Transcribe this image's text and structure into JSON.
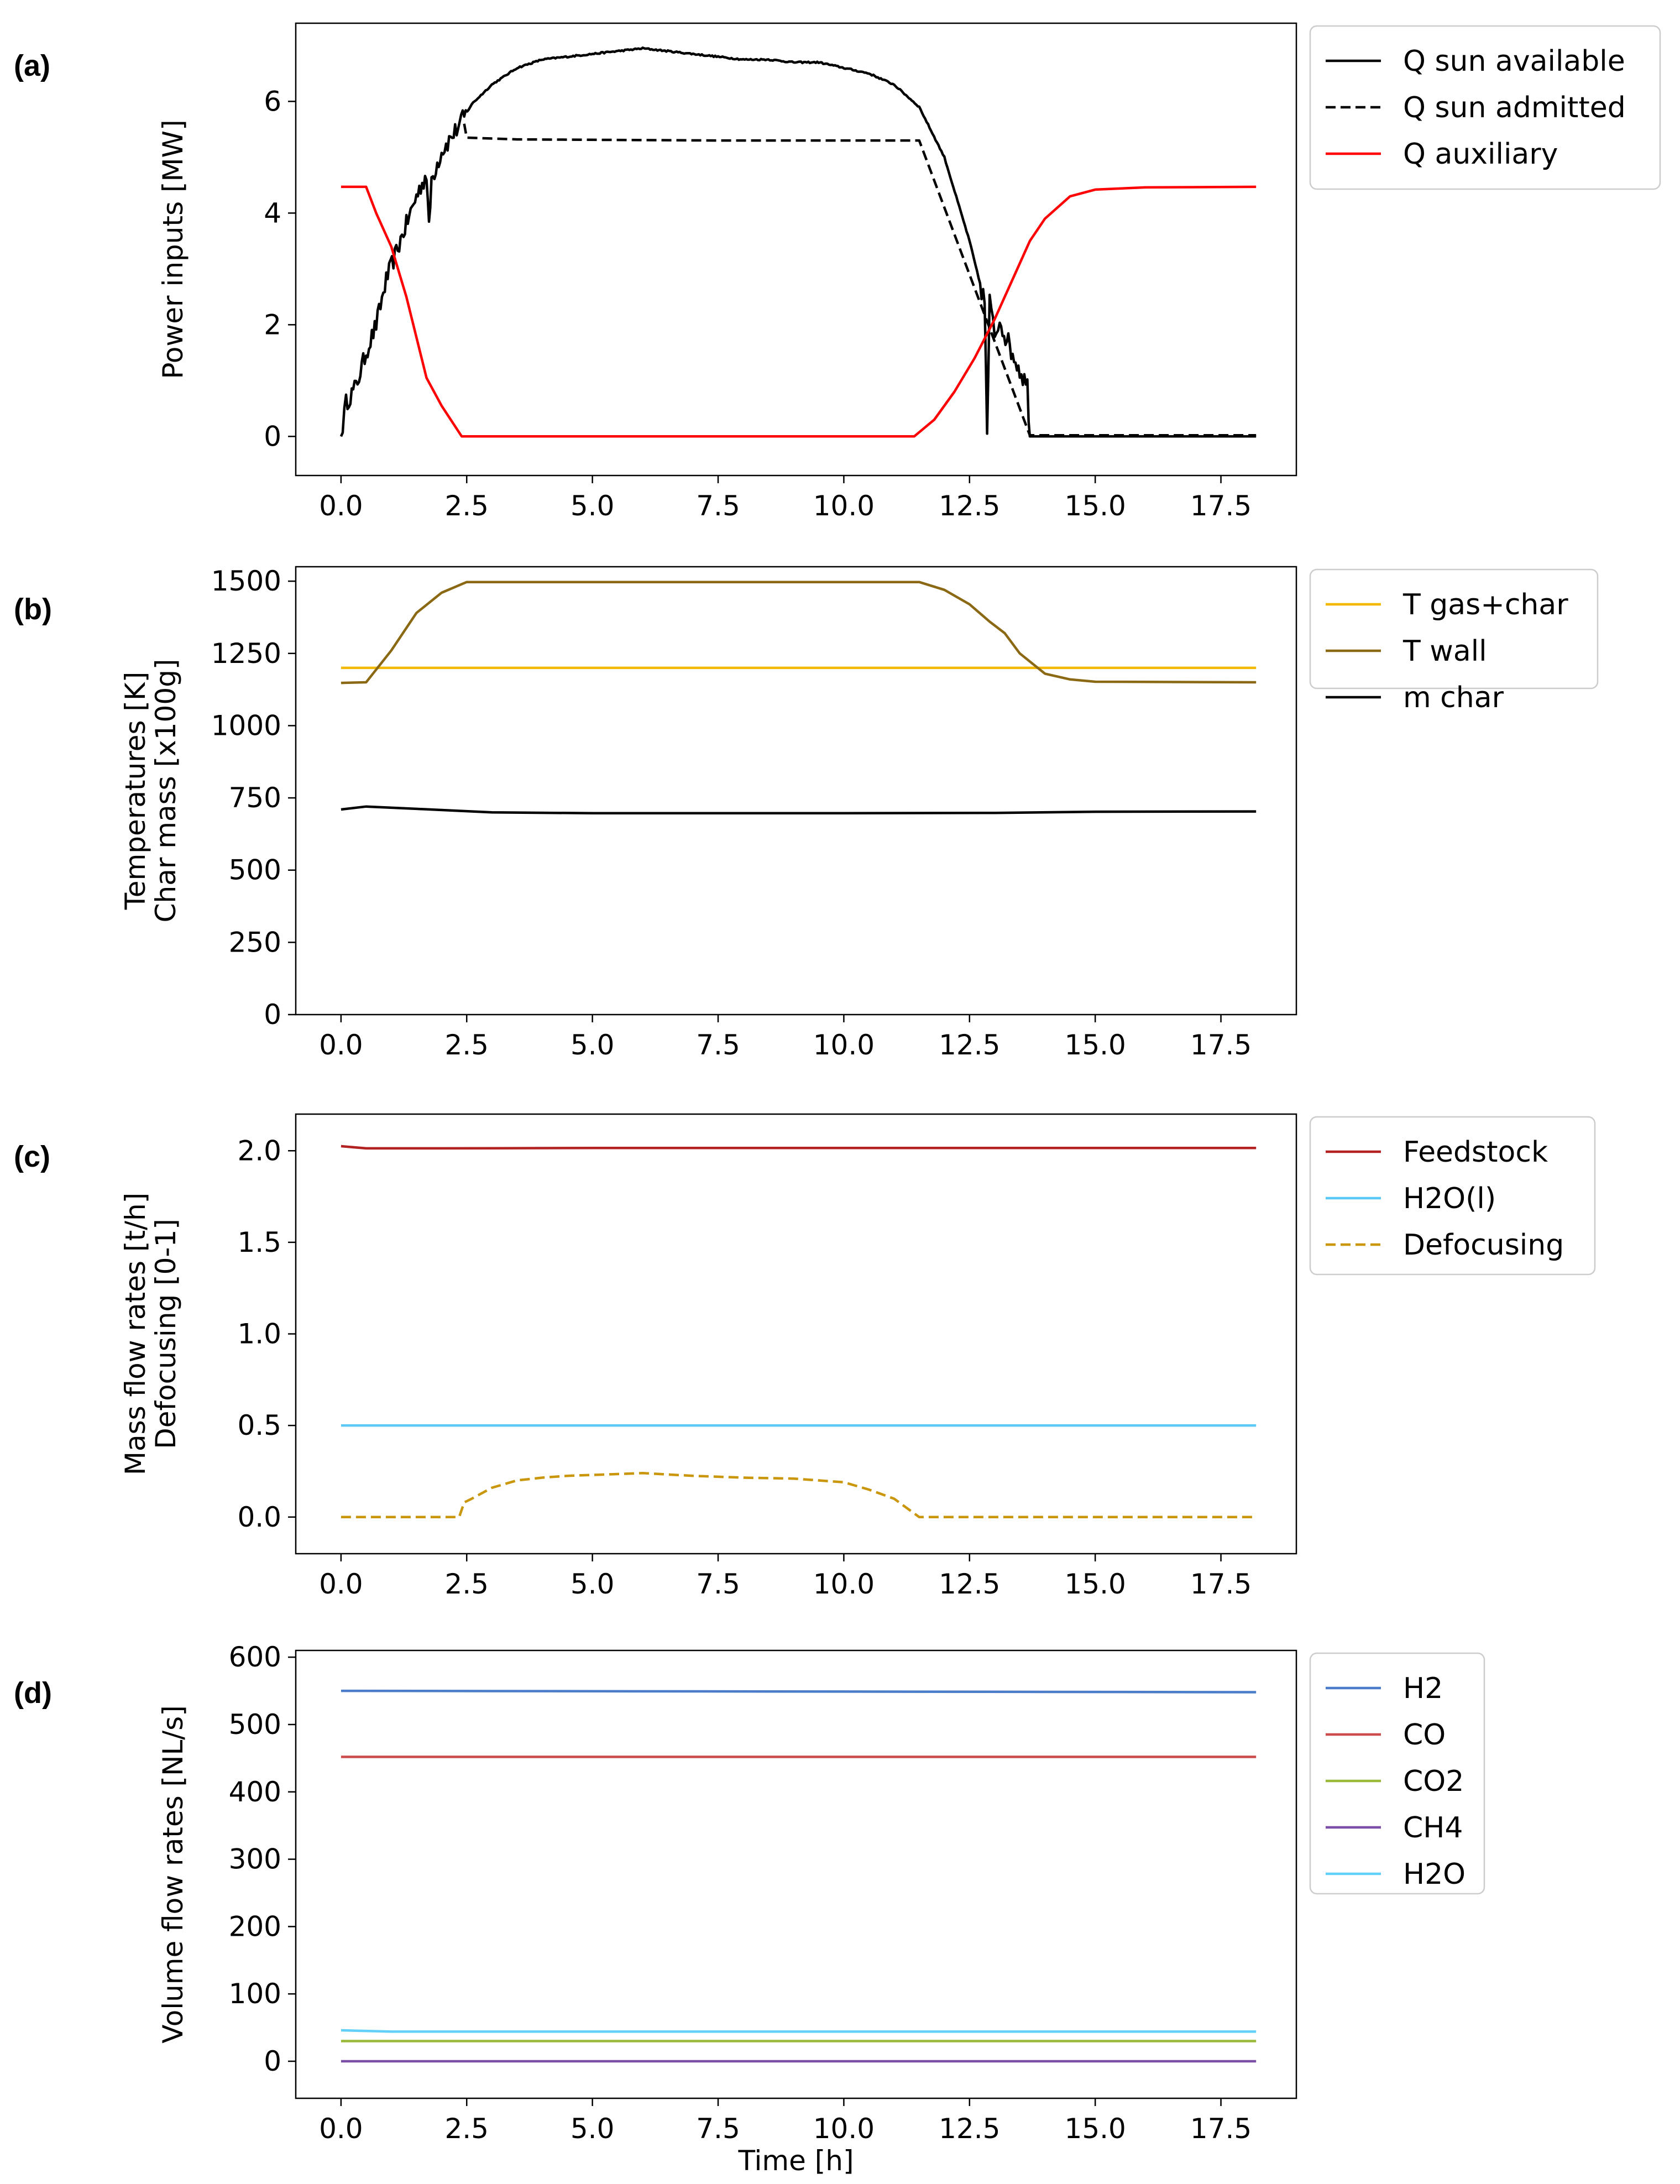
{
  "chart_data": [
    {
      "panel": "(a)",
      "type": "line",
      "title": "",
      "xlabel": "",
      "ylabel": [
        "Power inputs [MW]"
      ],
      "xlim": [
        -0.9,
        19.0
      ],
      "ylim": [
        -0.7,
        7.4
      ],
      "xticks": [
        0.0,
        2.5,
        5.0,
        7.5,
        10.0,
        12.5,
        15.0,
        17.5
      ],
      "yticks": [
        0,
        2,
        4,
        6
      ],
      "legend": "outside-right",
      "series": [
        {
          "name": "Q sun available",
          "color": "#000000",
          "style": "solid",
          "noise": 0.15,
          "points": [
            [
              0,
              0
            ],
            [
              0.1,
              0.6
            ],
            [
              0.3,
              0.9
            ],
            [
              0.5,
              1.5
            ],
            [
              0.7,
              2.0
            ],
            [
              0.9,
              2.8
            ],
            [
              1.1,
              3.3
            ],
            [
              1.3,
              3.8
            ],
            [
              1.5,
              4.3
            ],
            [
              1.7,
              4.7
            ],
            [
              1.75,
              3.7
            ],
            [
              1.8,
              4.6
            ],
            [
              2.0,
              5.1
            ],
            [
              2.3,
              5.5
            ],
            [
              2.6,
              5.95
            ],
            [
              3.0,
              6.3
            ],
            [
              3.5,
              6.6
            ],
            [
              4.0,
              6.75
            ],
            [
              4.5,
              6.8
            ],
            [
              5.0,
              6.85
            ],
            [
              5.5,
              6.9
            ],
            [
              6.0,
              6.95
            ],
            [
              6.5,
              6.9
            ],
            [
              7.0,
              6.85
            ],
            [
              7.5,
              6.8
            ],
            [
              8.0,
              6.75
            ],
            [
              8.5,
              6.75
            ],
            [
              9.0,
              6.7
            ],
            [
              9.5,
              6.7
            ],
            [
              10.0,
              6.6
            ],
            [
              10.5,
              6.5
            ],
            [
              11.0,
              6.3
            ],
            [
              11.5,
              5.9
            ],
            [
              12.0,
              5.0
            ],
            [
              12.5,
              3.5
            ],
            [
              12.8,
              2.4
            ],
            [
              12.85,
              0.05
            ],
            [
              12.9,
              2.4
            ],
            [
              13.0,
              1.8
            ],
            [
              13.1,
              2.1
            ],
            [
              13.3,
              1.6
            ],
            [
              13.5,
              1.2
            ],
            [
              13.65,
              0.9
            ],
            [
              13.7,
              0
            ],
            [
              15.0,
              0
            ],
            [
              18.2,
              0
            ]
          ]
        },
        {
          "name": "Q sun admitted",
          "color": "#000000",
          "style": "dashed",
          "points": [
            [
              2.45,
              5.6
            ],
            [
              2.5,
              5.35
            ],
            [
              3.5,
              5.32
            ],
            [
              7.5,
              5.3
            ],
            [
              11.5,
              5.3
            ],
            [
              13.7,
              0.02
            ],
            [
              18.2,
              0.02
            ]
          ]
        },
        {
          "name": "Q auxiliary",
          "color": "#ff0000",
          "style": "solid",
          "points": [
            [
              0,
              4.47
            ],
            [
              0.5,
              4.47
            ],
            [
              0.7,
              4.0
            ],
            [
              1.0,
              3.4
            ],
            [
              1.3,
              2.5
            ],
            [
              1.7,
              1.05
            ],
            [
              2.0,
              0.55
            ],
            [
              2.4,
              0
            ],
            [
              11.4,
              0
            ],
            [
              11.8,
              0.3
            ],
            [
              12.2,
              0.8
            ],
            [
              12.6,
              1.4
            ],
            [
              13.0,
              2.1
            ],
            [
              13.4,
              2.9
            ],
            [
              13.7,
              3.5
            ],
            [
              14.0,
              3.9
            ],
            [
              14.5,
              4.3
            ],
            [
              15.0,
              4.42
            ],
            [
              16.0,
              4.46
            ],
            [
              18.2,
              4.47
            ]
          ]
        }
      ]
    },
    {
      "panel": "(b)",
      "type": "line",
      "title": "",
      "xlabel": "",
      "ylabel": [
        "Temperatures [K]",
        "Char mass [x100g]"
      ],
      "xlim": [
        -0.9,
        19.0
      ],
      "ylim": [
        0,
        1550
      ],
      "xticks": [
        0.0,
        2.5,
        5.0,
        7.5,
        10.0,
        12.5,
        15.0,
        17.5
      ],
      "yticks": [
        0,
        250,
        500,
        750,
        1000,
        1250,
        1500
      ],
      "legend": "outside-right",
      "series": [
        {
          "name": "T gas+char",
          "color": "#f5b800",
          "style": "solid",
          "points": [
            [
              0,
              1200
            ],
            [
              18.2,
              1200
            ]
          ]
        },
        {
          "name": "T wall",
          "color": "#8b6914",
          "style": "solid",
          "points": [
            [
              0,
              1148
            ],
            [
              0.5,
              1150
            ],
            [
              1.0,
              1260
            ],
            [
              1.5,
              1390
            ],
            [
              2.0,
              1460
            ],
            [
              2.5,
              1497
            ],
            [
              11.5,
              1497
            ],
            [
              12.0,
              1470
            ],
            [
              12.5,
              1420
            ],
            [
              12.9,
              1360
            ],
            [
              13.2,
              1320
            ],
            [
              13.5,
              1250
            ],
            [
              14.0,
              1180
            ],
            [
              14.5,
              1160
            ],
            [
              15.0,
              1152
            ],
            [
              18.2,
              1150
            ]
          ]
        },
        {
          "name": "m char",
          "color": "#000000",
          "style": "solid",
          "points": [
            [
              0,
              710
            ],
            [
              0.5,
              720
            ],
            [
              1.5,
              712
            ],
            [
              3.0,
              700
            ],
            [
              5.0,
              697
            ],
            [
              10.0,
              697
            ],
            [
              13.0,
              698
            ],
            [
              15.0,
              702
            ],
            [
              18.2,
              703
            ]
          ]
        }
      ]
    },
    {
      "panel": "(c)",
      "type": "line",
      "title": "",
      "xlabel": "",
      "ylabel": [
        "Mass flow rates [t/h]",
        "Defocusing [0-1]"
      ],
      "xlim": [
        -0.9,
        19.0
      ],
      "ylim": [
        -0.2,
        2.2
      ],
      "xticks": [
        0.0,
        2.5,
        5.0,
        7.5,
        10.0,
        12.5,
        15.0,
        17.5
      ],
      "yticks": [
        0.0,
        0.5,
        1.0,
        1.5,
        2.0
      ],
      "legend": "outside-right",
      "series": [
        {
          "name": "Feedstock",
          "color": "#b22222",
          "style": "solid",
          "points": [
            [
              0,
              2.025
            ],
            [
              0.5,
              2.013
            ],
            [
              2.0,
              2.013
            ],
            [
              5.0,
              2.015
            ],
            [
              18.2,
              2.015
            ]
          ]
        },
        {
          "name": "H2O(l)",
          "color": "#5bc8f5",
          "style": "solid",
          "points": [
            [
              0,
              0.5
            ],
            [
              18.2,
              0.5
            ]
          ]
        },
        {
          "name": "Defocusing",
          "color": "#c9960c",
          "style": "dashed",
          "points": [
            [
              0,
              0
            ],
            [
              2.35,
              0
            ],
            [
              2.45,
              0.08
            ],
            [
              2.6,
              0.1
            ],
            [
              3.0,
              0.16
            ],
            [
              3.5,
              0.2
            ],
            [
              4.0,
              0.215
            ],
            [
              4.5,
              0.225
            ],
            [
              5.0,
              0.23
            ],
            [
              6.0,
              0.24
            ],
            [
              7.0,
              0.225
            ],
            [
              8.0,
              0.215
            ],
            [
              9.0,
              0.21
            ],
            [
              10.0,
              0.19
            ],
            [
              10.5,
              0.15
            ],
            [
              11.0,
              0.1
            ],
            [
              11.3,
              0.04
            ],
            [
              11.5,
              0
            ],
            [
              18.2,
              0
            ]
          ]
        }
      ]
    },
    {
      "panel": "(d)",
      "type": "line",
      "title": "",
      "xlabel": "Time [h]",
      "ylabel": [
        "Volume flow rates [NL/s]"
      ],
      "xlim": [
        -0.9,
        19.0
      ],
      "ylim": [
        -55,
        610
      ],
      "xticks": [
        0.0,
        2.5,
        5.0,
        7.5,
        10.0,
        12.5,
        15.0,
        17.5
      ],
      "yticks": [
        0,
        100,
        200,
        300,
        400,
        500,
        600
      ],
      "legend": "outside-right",
      "series": [
        {
          "name": "H2",
          "color": "#4a7cc9",
          "style": "solid",
          "points": [
            [
              0,
              550
            ],
            [
              18.2,
              548
            ]
          ]
        },
        {
          "name": "CO",
          "color": "#cc4c4c",
          "style": "solid",
          "points": [
            [
              0,
              452
            ],
            [
              18.2,
              452
            ]
          ]
        },
        {
          "name": "CO2",
          "color": "#9ab83a",
          "style": "solid",
          "points": [
            [
              0,
              30
            ],
            [
              18.2,
              30
            ]
          ]
        },
        {
          "name": "CH4",
          "color": "#7b4fa8",
          "style": "solid",
          "points": [
            [
              0,
              0
            ],
            [
              18.2,
              0
            ]
          ]
        },
        {
          "name": "H2O",
          "color": "#62d0f8",
          "style": "solid",
          "points": [
            [
              0,
              46
            ],
            [
              1.0,
              44
            ],
            [
              18.2,
              44
            ]
          ]
        }
      ]
    }
  ]
}
